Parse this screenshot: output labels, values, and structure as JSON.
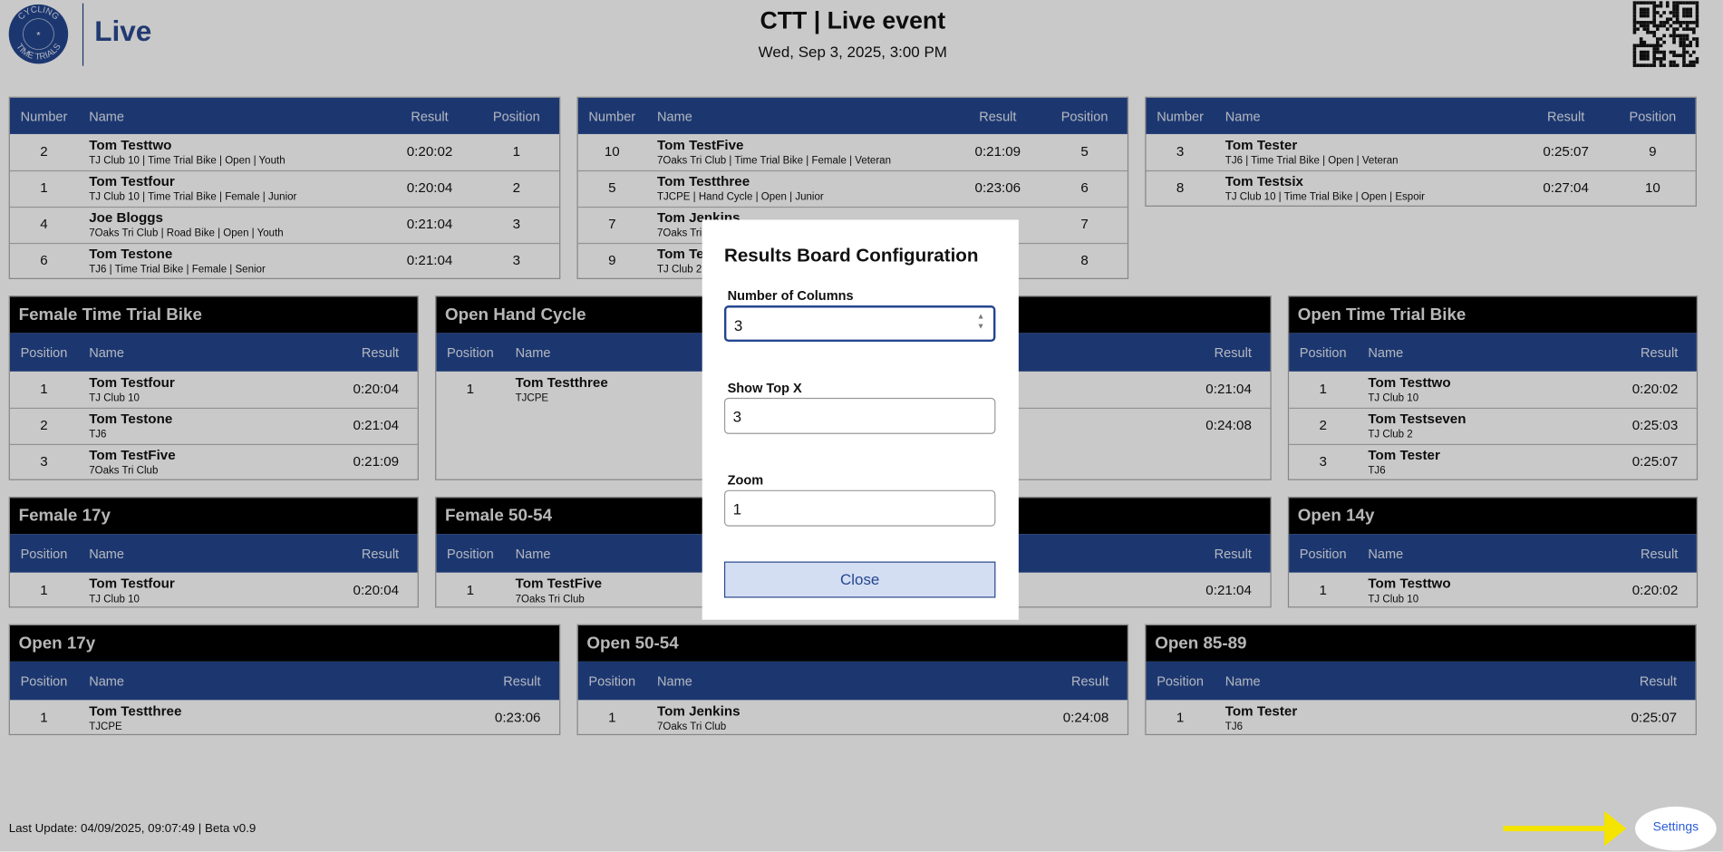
{
  "header": {
    "logo_top": "CYCLING",
    "logo_bottom": "TIME TRIALS",
    "brand": "Live",
    "title": "CTT | Live event",
    "date": "Wed, Sep 3, 2025, 3:00 PM"
  },
  "overall": [
    {
      "columns": {
        "number": "Number",
        "name": "Name",
        "result": "Result",
        "position": "Position"
      },
      "rows": [
        {
          "number": 2,
          "name": "Tom Testtwo",
          "details": "TJ Club 10 | Time Trial Bike | Open | Youth",
          "result": "0:20:02",
          "position": 1
        },
        {
          "number": 1,
          "name": "Tom Testfour",
          "details": "TJ Club 10 | Time Trial Bike | Female | Junior",
          "result": "0:20:04",
          "position": 2
        },
        {
          "number": 4,
          "name": "Joe Bloggs",
          "details": "7Oaks Tri Club | Road Bike | Open | Youth",
          "result": "0:21:04",
          "position": 3
        },
        {
          "number": 6,
          "name": "Tom Testone",
          "details": "TJ6 | Time Trial Bike | Female | Senior",
          "result": "0:21:04",
          "position": 3
        }
      ]
    },
    {
      "columns": {
        "number": "Number",
        "name": "Name",
        "result": "Result",
        "position": "Position"
      },
      "rows": [
        {
          "number": 10,
          "name": "Tom TestFive",
          "details": "7Oaks Tri Club | Time Trial Bike | Female | Veteran",
          "result": "0:21:09",
          "position": 5
        },
        {
          "number": 5,
          "name": "Tom Testthree",
          "details": "TJCPE | Hand Cycle | Open | Junior",
          "result": "0:23:06",
          "position": 6
        },
        {
          "number": 7,
          "name": "Tom Jenkins",
          "details": "7Oaks Tri",
          "position": 7
        },
        {
          "number": 9,
          "name": "Tom Tes",
          "details": "TJ Club 2",
          "position": 8
        }
      ]
    },
    {
      "columns": {
        "number": "Number",
        "name": "Name",
        "result": "Result",
        "position": "Position"
      },
      "rows": [
        {
          "number": 3,
          "name": "Tom Tester",
          "details": "TJ6 | Time Trial Bike | Open | Veteran",
          "result": "0:25:07",
          "position": 9
        },
        {
          "number": 8,
          "name": "Tom Testsix",
          "details": "TJ Club 10 | Time Trial Bike | Open | Espoir",
          "result": "0:27:04",
          "position": 10
        }
      ]
    }
  ],
  "categories": [
    {
      "title": "Female Time Trial Bike",
      "columns": {
        "position": "Position",
        "name": "Name",
        "result": "Result"
      },
      "rows": [
        {
          "position": 1,
          "name": "Tom Testfour",
          "club": "TJ Club 10",
          "result": "0:20:04"
        },
        {
          "position": 2,
          "name": "Tom Testone",
          "club": "TJ6",
          "result": "0:21:04"
        },
        {
          "position": 3,
          "name": "Tom TestFive",
          "club": "7Oaks Tri Club",
          "result": "0:21:09"
        }
      ]
    },
    {
      "title": "Open Hand Cycle",
      "columns": {
        "position": "Position",
        "name": "Name"
      },
      "rows": [
        {
          "position": 1,
          "name": "Tom Testthree",
          "club": "TJCPE"
        }
      ]
    },
    {
      "columns": {
        "result": "Result"
      },
      "rows": [
        {
          "result": "0:21:04"
        },
        {
          "result": "0:24:08"
        }
      ]
    },
    {
      "title": "Open Time Trial Bike",
      "columns": {
        "position": "Position",
        "name": "Name",
        "result": "Result"
      },
      "rows": [
        {
          "position": 1,
          "name": "Tom Testtwo",
          "club": "TJ Club 10",
          "result": "0:20:02"
        },
        {
          "position": 2,
          "name": "Tom Testseven",
          "club": "TJ Club 2",
          "result": "0:25:03"
        },
        {
          "position": 3,
          "name": "Tom Tester",
          "club": "TJ6",
          "result": "0:25:07"
        }
      ]
    },
    {
      "title": "Female 17y",
      "columns": {
        "position": "Position",
        "name": "Name",
        "result": "Result"
      },
      "rows": [
        {
          "position": 1,
          "name": "Tom Testfour",
          "club": "TJ Club 10",
          "result": "0:20:04"
        }
      ]
    },
    {
      "title": "Female 50-54",
      "columns": {
        "position": "Position",
        "name": "Name"
      },
      "rows": [
        {
          "position": 1,
          "name": "Tom TestFive",
          "club": "7Oaks Tri Club"
        }
      ]
    },
    {
      "columns": {
        "result": "Result"
      },
      "rows": [
        {
          "result": "0:21:04"
        }
      ]
    },
    {
      "title": "Open 14y",
      "columns": {
        "position": "Position",
        "name": "Name",
        "result": "Result"
      },
      "rows": [
        {
          "position": 1,
          "name": "Tom Testtwo",
          "club": "TJ Club 10",
          "result": "0:20:02"
        }
      ]
    },
    {
      "title": "Open 17y",
      "columns": {
        "position": "Position",
        "name": "Name",
        "result": "Result"
      },
      "rows": [
        {
          "position": 1,
          "name": "Tom Testthree",
          "club": "TJCPE",
          "result": "0:23:06"
        }
      ]
    },
    {
      "title": "Open 50-54",
      "columns": {
        "position": "Position",
        "name": "Name",
        "result": "Result"
      },
      "rows": [
        {
          "position": 1,
          "name": "Tom Jenkins",
          "club": "7Oaks Tri Club",
          "result": "0:24:08"
        }
      ]
    },
    {
      "title": "Open 85-89",
      "columns": {
        "position": "Position",
        "name": "Name",
        "result": "Result"
      },
      "rows": [
        {
          "position": 1,
          "name": "Tom Tester",
          "club": "TJ6",
          "result": "0:25:07"
        }
      ]
    }
  ],
  "modal": {
    "title": "Results Board Configuration",
    "fields": [
      {
        "label": "Number of Columns",
        "value": 3
      },
      {
        "label": "Show Top X",
        "value": 3
      },
      {
        "label": "Zoom",
        "value": 1
      }
    ],
    "close": "Close"
  },
  "footer": {
    "update": "Last Update: 04/09/2025, 09:07:49 | Beta v0.9",
    "settings": "Settings"
  }
}
